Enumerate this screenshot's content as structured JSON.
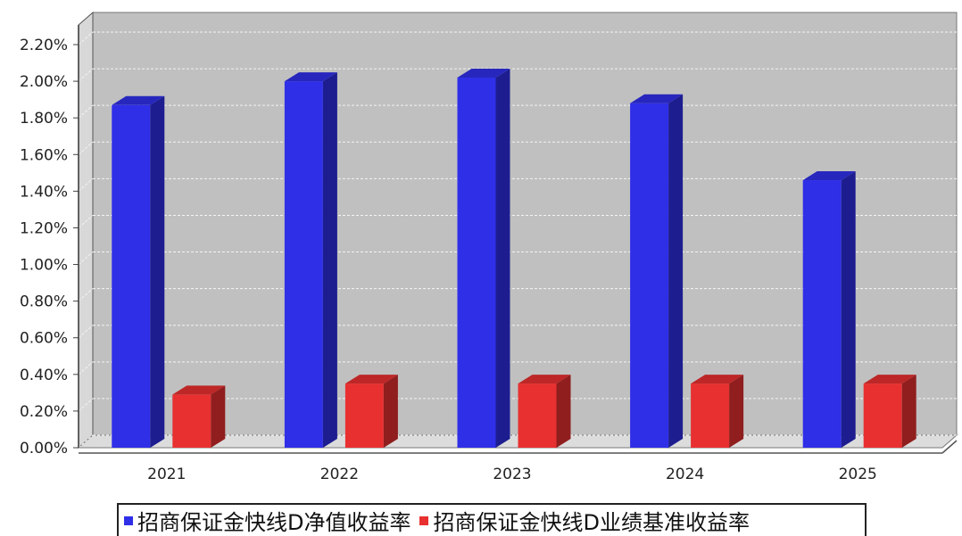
{
  "chart_data": {
    "type": "bar",
    "categories": [
      "2021",
      "2022",
      "2023",
      "2024",
      "2025"
    ],
    "series": [
      {
        "name": "招商保证金快线D净值收益率",
        "color": "#2f2fe8",
        "values": [
          1.87,
          2.0,
          2.02,
          1.88,
          1.46
        ]
      },
      {
        "name": "招商保证金快线D业绩基准收益率",
        "color": "#e83030",
        "values": [
          0.29,
          0.35,
          0.35,
          0.35,
          0.35
        ]
      }
    ],
    "y_ticks": [
      "0.00%",
      "0.20%",
      "0.40%",
      "0.60%",
      "0.80%",
      "1.00%",
      "1.20%",
      "1.40%",
      "1.60%",
      "1.80%",
      "2.00%",
      "2.20%"
    ],
    "ylim": [
      0,
      2.2
    ],
    "unit": "%",
    "grid": true,
    "legend_position": "bottom",
    "plot_background": "#c0c0c0"
  }
}
